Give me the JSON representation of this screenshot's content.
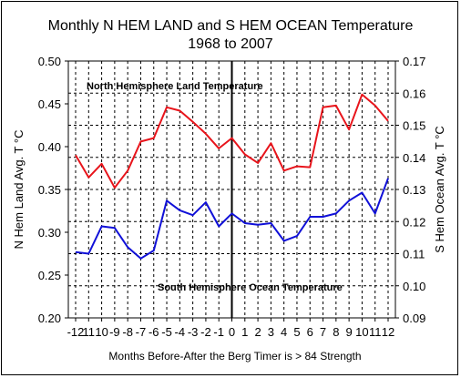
{
  "chart_data": {
    "type": "line",
    "title": "Monthly N HEM LAND and S HEM OCEAN Temperature",
    "subtitle": "1968 to 2007",
    "xlabel": "Months Before-After the Berg Timer is > 84 Strength",
    "ylabel_left": "N Hem Land Avg. T °C",
    "ylabel_right": "S Hem Ocean Avg. T °C",
    "x": [
      -12,
      -11,
      -10,
      -9,
      -8,
      -7,
      -6,
      -5,
      -4,
      -3,
      -2,
      -1,
      0,
      1,
      2,
      3,
      4,
      5,
      6,
      7,
      8,
      9,
      10,
      11,
      12
    ],
    "x_tick_labels": [
      "-12",
      "11",
      "10",
      "-9",
      "-8",
      "-7",
      "-6",
      "-5",
      "-4",
      "-3",
      "-2",
      "-1",
      "0",
      "1",
      "2",
      "3",
      "4",
      "5",
      "6",
      "7",
      "8",
      "9",
      "10",
      "11",
      "12"
    ],
    "left_axis": {
      "ylim": [
        0.2,
        0.5
      ],
      "ticks": [
        "0.20",
        "0.25",
        "0.30",
        "0.35",
        "0.40",
        "0.45",
        "0.50"
      ]
    },
    "right_axis": {
      "ylim": [
        0.09,
        0.17
      ],
      "ticks": [
        "0.09",
        "0.10",
        "0.11",
        "0.12",
        "0.13",
        "0.14",
        "0.15",
        "0.16",
        "0.17"
      ]
    },
    "grid": true,
    "vertical_marker_x": 0,
    "series": [
      {
        "name": "North Hemisphere Land Temperature",
        "axis": "left",
        "color": "#e8141b",
        "values": [
          0.39,
          0.364,
          0.38,
          0.352,
          0.372,
          0.406,
          0.41,
          0.446,
          0.442,
          0.429,
          0.415,
          0.398,
          0.41,
          0.391,
          0.381,
          0.404,
          0.372,
          0.377,
          0.376,
          0.446,
          0.448,
          0.42,
          0.461,
          0.448,
          0.43
        ]
      },
      {
        "name": "South Hemisphere Ocean Temperature",
        "axis": "right",
        "color": "#1010d8",
        "values": [
          0.1105,
          0.11,
          0.1185,
          0.118,
          0.112,
          0.1085,
          0.111,
          0.1265,
          0.1235,
          0.122,
          0.126,
          0.1185,
          0.1225,
          0.1195,
          0.119,
          0.1195,
          0.114,
          0.1155,
          0.1215,
          0.1215,
          0.1225,
          0.1265,
          0.129,
          0.1225,
          0.1335
        ]
      }
    ],
    "annotations": [
      "North Hemisphere Land Temperature",
      "South Hemisphere Ocean Temperature"
    ]
  }
}
